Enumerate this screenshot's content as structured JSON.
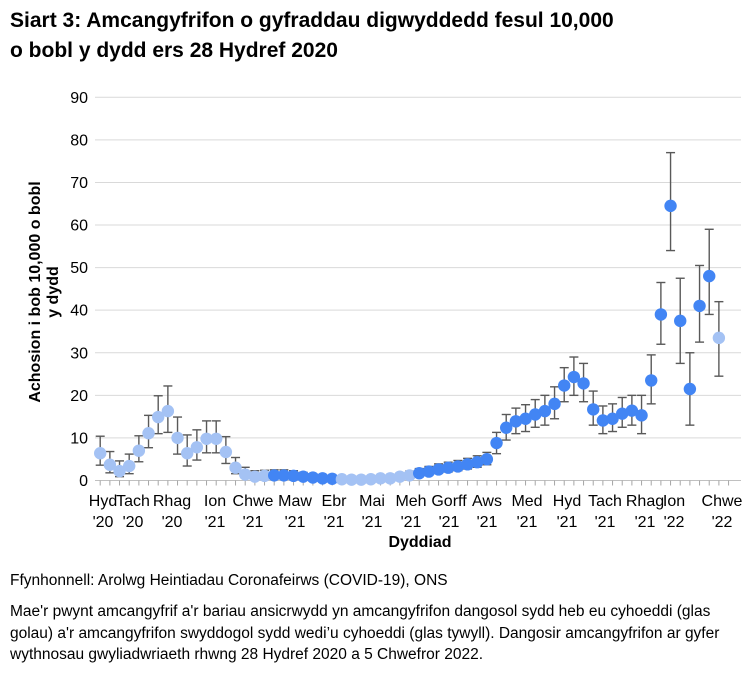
{
  "title": {
    "line1": "Siart 3: Amcangyfrifon o gyfraddau digwyddedd fesul 10,000",
    "line2": "o bobl y dydd ers 28 Hydref 2020"
  },
  "footer": {
    "source": "Ffynhonnell: Arolwg Heintiadau Coronafeirws (COVID-19), ONS",
    "note": "Mae'r pwynt amcangyfrif a'r bariau ansicrwydd yn amcangyfrifon dangosol sydd heb eu cyhoeddi (glas golau) a'r amcangyfrifon swyddogol sydd wedi’u cyhoeddi (glas tywyll). Dangosir amcangyfrifon ar gyfer wythnosau gwyliadwriaeth rhwng 28 Hydref 2020 a 5 Chwefror 2022."
  },
  "colors": {
    "unpublished_light_blue": "#A4C2F4",
    "published_dark_blue": "#4285F4",
    "error_bar": "#595959",
    "gridline": "#D9D9D9",
    "axis_line": "#C0C0C0",
    "tick": "#A6A6A6",
    "text": "#000000"
  },
  "chart_data": {
    "type": "scatter",
    "title": "Siart 3: Amcangyfrifon o gyfraddau digwyddedd fesul 10,000 o bobl y dydd ers 28 Hydref 2020",
    "xlabel": "Dyddiad",
    "ylabel_line1": "Achosion i bob 10,000 o bobl",
    "ylabel_line2": "y dydd",
    "ylim": [
      0,
      90
    ],
    "yticks": [
      0,
      10,
      20,
      30,
      40,
      50,
      60,
      70,
      80,
      90
    ],
    "grid": "horizontal",
    "legend": "none (point colours explained in footnote: light blue = unpublished indicative estimates, dark blue = published official estimates)",
    "x_tick_labels": [
      {
        "month": "Hyd",
        "year": "'20"
      },
      {
        "month": "Tach",
        "year": "'20"
      },
      {
        "month": "Rhag",
        "year": "'20"
      },
      {
        "month": "Ion",
        "year": "'21"
      },
      {
        "month": "Chwe",
        "year": "'21"
      },
      {
        "month": "Maw",
        "year": "'21"
      },
      {
        "month": "Ebr",
        "year": "'21"
      },
      {
        "month": "Mai",
        "year": "'21"
      },
      {
        "month": "Meh",
        "year": "'21"
      },
      {
        "month": "Gorff",
        "year": "'21"
      },
      {
        "month": "Aws",
        "year": "'21"
      },
      {
        "month": "Med",
        "year": "'21"
      },
      {
        "month": "Hyd",
        "year": "'21"
      },
      {
        "month": "Tach",
        "year": "'21"
      },
      {
        "month": "Rhag",
        "year": "'21"
      },
      {
        "month": "Ion",
        "year": "'22"
      },
      {
        "month": "Chwe",
        "year": "'22"
      }
    ],
    "points": {
      "cadence": "weekly surveillance weeks, 28 Hydref 2020 to 5 Chwefror 2022",
      "values": [
        6.4,
        3.7,
        2.2,
        3.4,
        7,
        11.1,
        14.9,
        16.3,
        10,
        6.4,
        7.8,
        9.8,
        9.8,
        6.7,
        3,
        1.4,
        0.9,
        1.1,
        1.2,
        1.2,
        1.1,
        0.9,
        0.7,
        0.5,
        0.4,
        0.3,
        0.2,
        0.2,
        0.3,
        0.5,
        0.5,
        0.9,
        1.2,
        1.7,
        2.1,
        2.6,
        3,
        3.3,
        3.8,
        4.3,
        5,
        8.8,
        12.4,
        13.9,
        14.5,
        15.5,
        16.3,
        18,
        22.3,
        24.3,
        22.8,
        16.7,
        14.1,
        14.5,
        15.7,
        16.4,
        15.3,
        23.5,
        39,
        64.5,
        37.5,
        21.5,
        41,
        48,
        33.5
      ],
      "ci_low": [
        3.6,
        1.8,
        0.9,
        1.6,
        4.4,
        7.7,
        11,
        11.3,
        6.2,
        3.4,
        4.8,
        6.5,
        6.5,
        4,
        1.6,
        0.6,
        0.3,
        0.4,
        0.5,
        0.5,
        0.4,
        0.3,
        0.2,
        0.15,
        0.1,
        0.1,
        0.05,
        0.05,
        0.1,
        0.2,
        0.2,
        0.4,
        0.6,
        0.9,
        1.3,
        1.7,
        2,
        2.3,
        2.7,
        3.1,
        3.7,
        6.3,
        9.5,
        11,
        11.5,
        12.5,
        13,
        14.5,
        18.5,
        20,
        18.5,
        13,
        11,
        11.5,
        12.5,
        13,
        11,
        18,
        32,
        54,
        27.5,
        13,
        32.5,
        39,
        24.5
      ],
      "ci_high": [
        10.4,
        6.8,
        4.6,
        6.2,
        10.5,
        15.3,
        19.9,
        22.2,
        14.9,
        10.7,
        11.9,
        14,
        14,
        10.3,
        5.4,
        3.1,
        2.3,
        2.4,
        2.5,
        2.5,
        2.3,
        1.9,
        1.6,
        1.2,
        1,
        0.8,
        0.6,
        0.6,
        0.8,
        1.1,
        1.1,
        1.7,
        2.2,
        2.8,
        3.3,
        3.9,
        4.3,
        4.7,
        5.2,
        5.8,
        6.6,
        11.3,
        15.5,
        17,
        17.8,
        19,
        20,
        22,
        26.5,
        29,
        27.5,
        21,
        17.5,
        18,
        19.5,
        20,
        20,
        29.5,
        46.5,
        77,
        47.5,
        30,
        50.5,
        59,
        42
      ],
      "published": [
        0,
        0,
        0,
        0,
        0,
        0,
        0,
        0,
        0,
        0,
        0,
        0,
        0,
        0,
        0,
        0,
        0,
        0,
        1,
        1,
        1,
        1,
        1,
        1,
        1,
        0,
        0,
        0,
        0,
        0,
        0,
        0,
        0,
        1,
        1,
        1,
        1,
        1,
        1,
        1,
        1,
        1,
        1,
        1,
        1,
        1,
        1,
        1,
        1,
        1,
        1,
        1,
        1,
        1,
        1,
        1,
        1,
        1,
        1,
        1,
        1,
        1,
        1,
        1,
        0
      ]
    }
  }
}
